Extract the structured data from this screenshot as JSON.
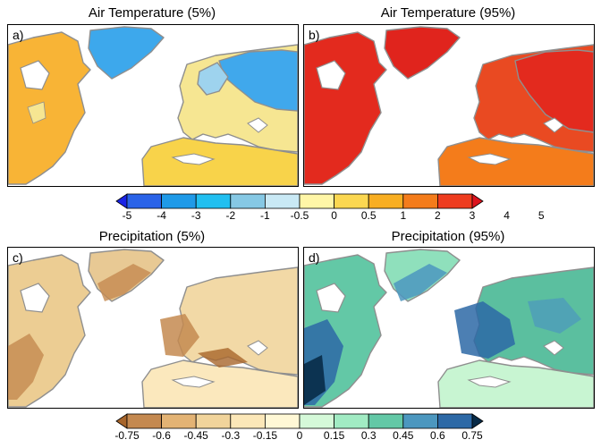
{
  "panels": [
    {
      "label": "a)",
      "title": "Air Temperature (5%)"
    },
    {
      "label": "b)",
      "title": "Air Temperature (95%)"
    },
    {
      "label": "c)",
      "title": "Precipitation (5%)"
    },
    {
      "label": "d)",
      "title": "Precipitation (95%)"
    }
  ],
  "colorbars": {
    "temperature": {
      "ticks": [
        "-5",
        "-4",
        "-3",
        "-2",
        "-1",
        "-0.5",
        "0",
        "0.5",
        "1",
        "2",
        "3",
        "4",
        "5"
      ],
      "colors": [
        "#1a23e6",
        "#2a63e8",
        "#1f9ae8",
        "#21bff0",
        "#86c8e4",
        "#c9e9f5",
        "#fff6a7",
        "#fbd751",
        "#f8ae22",
        "#f47c1b",
        "#ee3c1f",
        "#dc141e"
      ]
    },
    "precipitation": {
      "ticks": [
        "-0.75",
        "-0.6",
        "-0.45",
        "-0.3",
        "-0.15",
        "0",
        "0.15",
        "0.3",
        "0.45",
        "0.6",
        "0.75"
      ],
      "colors": [
        "#a7652b",
        "#c48950",
        "#e3b374",
        "#f1d49b",
        "#fbe7b8",
        "#fff8d6",
        "#d5f9d9",
        "#a1ebc3",
        "#63c8a6",
        "#4c97bf",
        "#2d69a6",
        "#082b48"
      ]
    }
  },
  "colors": {
    "coastline": "#8f8f8f",
    "ocean": "#ffffff",
    "ice": "#ffffff"
  }
}
